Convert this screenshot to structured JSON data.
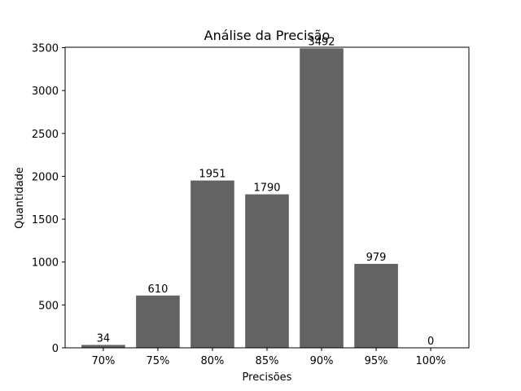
{
  "chart_data": {
    "type": "bar",
    "title": "Análise da Precisão",
    "xlabel": "Precisões",
    "ylabel": "Quantidade",
    "categories": [
      "70%",
      "75%",
      "80%",
      "85%",
      "90%",
      "95%",
      "100%"
    ],
    "values": [
      34,
      610,
      1951,
      1790,
      3492,
      979,
      0
    ],
    "data_labels": [
      "34",
      "610",
      "1951",
      "1790",
      "3492",
      "979",
      "0"
    ],
    "yticks": [
      0,
      500,
      1000,
      1500,
      2000,
      2500,
      3000,
      3500
    ],
    "ylim": [
      0,
      3500
    ],
    "grid": false,
    "bar_color": "#636363"
  }
}
